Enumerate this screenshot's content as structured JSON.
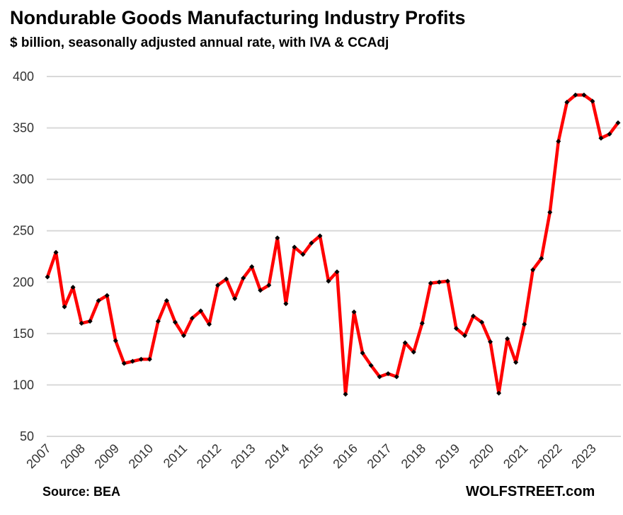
{
  "chart_data": {
    "type": "line",
    "title": "Nondurable Goods Manufacturing Industry Profits",
    "subtitle": "$ billion, seasonally adjusted annual rate, with IVA & CCAdj",
    "source": "Source: BEA",
    "brand": "WOLFSTREET.com",
    "ylim": [
      50,
      400
    ],
    "yticks": [
      50,
      100,
      150,
      200,
      250,
      300,
      350,
      400
    ],
    "xticks": [
      "2007",
      "2008",
      "2009",
      "2010",
      "2011",
      "2012",
      "2013",
      "2014",
      "2015",
      "2016",
      "2017",
      "2018",
      "2019",
      "2020",
      "2021",
      "2022",
      "2023"
    ],
    "grid": true,
    "line_color": "#ff0000",
    "marker_color": "#000000",
    "x_start": "2007 Q1",
    "frequency": "quarterly",
    "values": [
      205,
      229,
      176,
      195,
      160,
      162,
      182,
      187,
      143,
      121,
      123,
      125,
      125,
      162,
      182,
      161,
      148,
      165,
      172,
      159,
      197,
      203,
      184,
      204,
      215,
      192,
      197,
      243,
      179,
      234,
      227,
      238,
      245,
      201,
      210,
      91,
      171,
      131,
      119,
      108,
      111,
      108,
      141,
      132,
      160,
      199,
      200,
      201,
      155,
      148,
      167,
      161,
      142,
      92,
      145,
      122,
      159,
      212,
      223,
      268,
      337,
      375,
      382,
      382,
      376,
      340,
      344,
      355
    ]
  }
}
